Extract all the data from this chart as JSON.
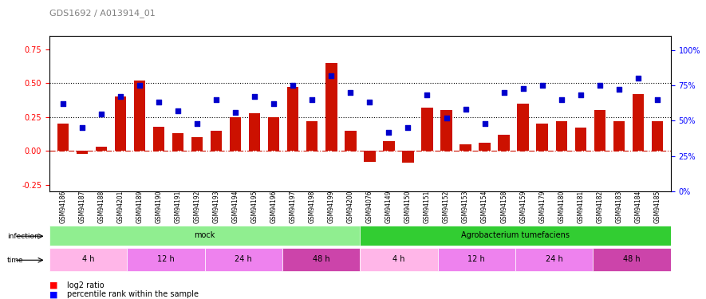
{
  "title": "GDS1692 / A013914_01",
  "samples": [
    "GSM94186",
    "GSM94187",
    "GSM94188",
    "GSM94201",
    "GSM94189",
    "GSM94190",
    "GSM94191",
    "GSM94192",
    "GSM94193",
    "GSM94194",
    "GSM94195",
    "GSM94196",
    "GSM94197",
    "GSM94198",
    "GSM94199",
    "GSM94200",
    "GSM94076",
    "GSM94149",
    "GSM94150",
    "GSM94151",
    "GSM94152",
    "GSM94153",
    "GSM94154",
    "GSM94158",
    "GSM94159",
    "GSM94179",
    "GSM94180",
    "GSM94181",
    "GSM94182",
    "GSM94183",
    "GSM94184",
    "GSM94185"
  ],
  "log2_ratio": [
    0.2,
    -0.02,
    0.03,
    0.4,
    0.52,
    0.18,
    0.13,
    0.1,
    0.15,
    0.25,
    0.28,
    0.25,
    0.47,
    0.22,
    0.65,
    0.15,
    -0.08,
    0.07,
    -0.09,
    0.32,
    0.3,
    0.05,
    0.06,
    0.12,
    0.35,
    0.2,
    0.22,
    0.17,
    0.3,
    0.22,
    0.42,
    0.22
  ],
  "percentile_rank": [
    62,
    45,
    55,
    67,
    75,
    63,
    57,
    48,
    65,
    56,
    67,
    62,
    75,
    65,
    82,
    70,
    63,
    42,
    45,
    68,
    52,
    58,
    48,
    70,
    73,
    75,
    65,
    68,
    75,
    72,
    80,
    65
  ],
  "infection_groups": [
    {
      "label": "mock",
      "start": 0,
      "end": 16,
      "color": "#90EE90"
    },
    {
      "label": "Agrobacterium tumefaciens",
      "start": 16,
      "end": 32,
      "color": "#32CD32"
    }
  ],
  "time_groups": [
    {
      "label": "4 h",
      "start": 0,
      "end": 4,
      "color": "#FFB6E8"
    },
    {
      "label": "12 h",
      "start": 4,
      "end": 8,
      "color": "#FF80D0"
    },
    {
      "label": "24 h",
      "start": 8,
      "end": 12,
      "color": "#FF80D0"
    },
    {
      "label": "48 h",
      "start": 12,
      "end": 16,
      "color": "#FF40C0"
    },
    {
      "label": "4 h",
      "start": 16,
      "end": 20,
      "color": "#FFB6E8"
    },
    {
      "label": "12 h",
      "start": 20,
      "end": 24,
      "color": "#FF80D0"
    },
    {
      "label": "24 h",
      "start": 24,
      "end": 28,
      "color": "#FF80D0"
    },
    {
      "label": "48 h",
      "start": 28,
      "end": 32,
      "color": "#FF40C0"
    }
  ],
  "bar_color": "#CC1100",
  "dot_color": "#0000CC",
  "ylim_left": [
    -0.3,
    0.85
  ],
  "ylim_right": [
    0,
    110
  ],
  "yticks_left": [
    -0.25,
    0.0,
    0.25,
    0.5,
    0.75
  ],
  "yticks_right": [
    0,
    25,
    50,
    75,
    100
  ],
  "hlines": [
    0.25,
    0.5
  ],
  "bg_color": "#f0f0f0",
  "time_colors": [
    "#FFB6E8",
    "#EE82EE",
    "#EE82EE",
    "#DA70D6"
  ]
}
